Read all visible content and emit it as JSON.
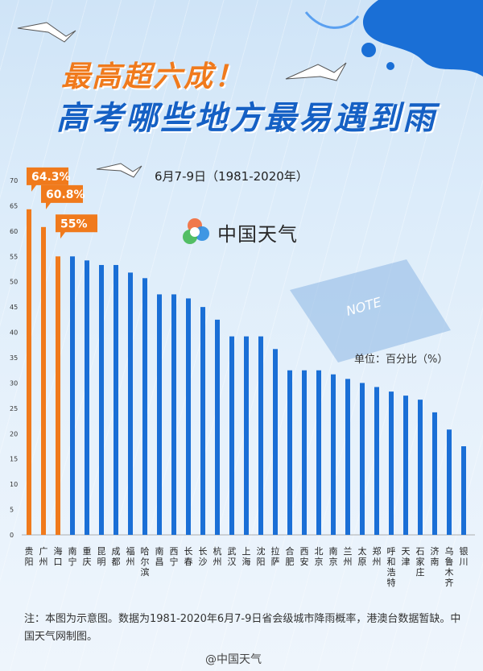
{
  "header": {
    "title1": "最高超六成！",
    "title2": "高考哪些地方最易遇到雨"
  },
  "brand": {
    "name": "中国天气"
  },
  "footer": {
    "note": "注：本图为示意图。数据为1981-2020年6月7-9日省会级城市降雨概率，港澳台数据暂缺。中国天气网制图。",
    "credit": "@中国天气"
  },
  "colors": {
    "highlight": "#f07a1c",
    "bar": "#1a6fd6",
    "title_blue": "#1560c4"
  },
  "chart_data": {
    "type": "bar",
    "title": "",
    "subtitle": "6月7-9日（1981-2020年）",
    "unit": "单位：百分比（%）",
    "ylim": [
      0,
      70
    ],
    "yticks": [
      0,
      5,
      10,
      15,
      20,
      25,
      30,
      35,
      40,
      45,
      50,
      55,
      60,
      65,
      70
    ],
    "categories": [
      "贵阳",
      "广州",
      "海口",
      "南宁",
      "重庆",
      "昆明",
      "成都",
      "福州",
      "哈尔滨",
      "南昌",
      "西宁",
      "长春",
      "长沙",
      "杭州",
      "武汉",
      "上海",
      "沈阳",
      "拉萨",
      "合肥",
      "西安",
      "北京",
      "南京",
      "兰州",
      "太原",
      "郑州",
      "呼和浩特",
      "天津",
      "石家庄",
      "济南",
      "乌鲁木齐",
      "银川"
    ],
    "values": [
      64.3,
      60.8,
      55,
      55,
      54.2,
      53.3,
      53.3,
      51.8,
      50.7,
      47.5,
      47.5,
      46.7,
      45,
      42.5,
      39.2,
      39.2,
      39.2,
      36.7,
      32.5,
      32.5,
      32.5,
      31.7,
      30.8,
      30,
      29.2,
      28.3,
      27.5,
      26.7,
      24.2,
      20.8,
      17.5
    ],
    "labels": [
      {
        "index": 0,
        "text": "64.3%"
      },
      {
        "index": 1,
        "text": "60.8%"
      },
      {
        "index": 2,
        "text": "55%"
      }
    ],
    "highlight_count": 3
  }
}
